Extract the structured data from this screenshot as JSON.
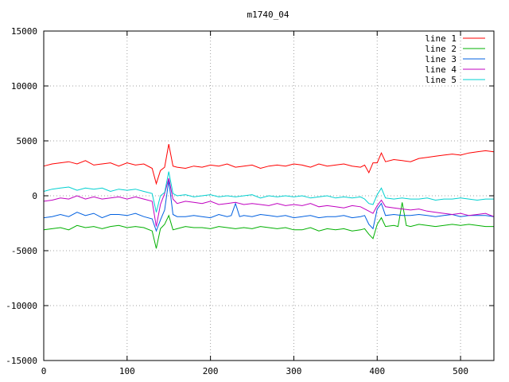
{
  "chart_data": {
    "type": "line",
    "title": "m1740_04",
    "xlabel": "",
    "ylabel": "",
    "xlim": [
      0,
      540
    ],
    "ylim": [
      -15000,
      15000
    ],
    "x_ticks": [
      0,
      100,
      200,
      300,
      400,
      500
    ],
    "y_ticks": [
      -15000,
      -10000,
      -5000,
      0,
      5000,
      10000,
      15000
    ],
    "grid": true,
    "legend_position": "top-right",
    "series": [
      {
        "name": "line 1",
        "color": "#ff0000",
        "x": [
          0,
          10,
          20,
          30,
          40,
          50,
          60,
          70,
          80,
          90,
          100,
          110,
          120,
          130,
          135,
          140,
          145,
          150,
          155,
          160,
          170,
          180,
          190,
          200,
          210,
          220,
          230,
          240,
          250,
          260,
          270,
          280,
          290,
          300,
          310,
          320,
          330,
          340,
          350,
          360,
          370,
          380,
          385,
          390,
          395,
          400,
          405,
          410,
          420,
          430,
          440,
          450,
          460,
          470,
          480,
          490,
          500,
          510,
          520,
          530,
          540
        ],
        "y": [
          2700,
          2900,
          3000,
          3100,
          2900,
          3200,
          2800,
          2900,
          3000,
          2700,
          3000,
          2800,
          2900,
          2500,
          1100,
          2300,
          2600,
          4700,
          2700,
          2600,
          2500,
          2700,
          2600,
          2800,
          2700,
          2900,
          2600,
          2700,
          2800,
          2500,
          2700,
          2800,
          2700,
          2900,
          2800,
          2600,
          2900,
          2700,
          2800,
          2900,
          2700,
          2600,
          2800,
          2100,
          3000,
          3000,
          3900,
          3100,
          3300,
          3200,
          3100,
          3400,
          3500,
          3600,
          3700,
          3800,
          3700,
          3900,
          4000,
          4100,
          4000
        ]
      },
      {
        "name": "line 2",
        "color": "#00b000",
        "x": [
          0,
          10,
          20,
          30,
          40,
          50,
          60,
          70,
          80,
          90,
          100,
          110,
          120,
          130,
          135,
          140,
          145,
          150,
          155,
          160,
          170,
          180,
          190,
          200,
          210,
          220,
          230,
          240,
          250,
          260,
          270,
          280,
          290,
          300,
          310,
          320,
          330,
          340,
          350,
          360,
          370,
          380,
          385,
          390,
          395,
          400,
          405,
          410,
          420,
          425,
          430,
          435,
          440,
          450,
          460,
          470,
          480,
          490,
          500,
          510,
          520,
          530,
          540
        ],
        "y": [
          -3100,
          -3000,
          -2900,
          -3100,
          -2700,
          -2900,
          -2800,
          -3000,
          -2800,
          -2700,
          -2900,
          -2800,
          -2900,
          -3200,
          -4800,
          -3000,
          -2600,
          -1800,
          -3100,
          -3000,
          -2800,
          -2900,
          -2900,
          -3000,
          -2800,
          -2900,
          -3000,
          -2900,
          -3000,
          -2800,
          -2900,
          -3000,
          -2900,
          -3100,
          -3100,
          -2900,
          -3200,
          -3000,
          -3100,
          -3000,
          -3200,
          -3100,
          -3000,
          -3500,
          -3900,
          -2600,
          -2000,
          -2800,
          -2700,
          -2800,
          -600,
          -2700,
          -2800,
          -2600,
          -2700,
          -2800,
          -2700,
          -2600,
          -2700,
          -2600,
          -2700,
          -2800,
          -2800
        ]
      },
      {
        "name": "line 3",
        "color": "#0060e0",
        "x": [
          0,
          10,
          20,
          30,
          40,
          50,
          60,
          70,
          80,
          90,
          100,
          110,
          120,
          130,
          135,
          140,
          145,
          150,
          155,
          160,
          170,
          180,
          190,
          200,
          210,
          220,
          225,
          230,
          235,
          240,
          250,
          260,
          270,
          280,
          290,
          300,
          310,
          320,
          330,
          340,
          350,
          360,
          370,
          380,
          385,
          390,
          395,
          400,
          405,
          410,
          420,
          430,
          440,
          450,
          460,
          470,
          480,
          490,
          500,
          510,
          520,
          530,
          540
        ],
        "y": [
          -2000,
          -1900,
          -1700,
          -1900,
          -1500,
          -1800,
          -1600,
          -2000,
          -1700,
          -1700,
          -1800,
          -1600,
          -1900,
          -2100,
          -3200,
          -2200,
          -1300,
          1400,
          -1700,
          -1900,
          -1900,
          -1800,
          -1900,
          -2000,
          -1700,
          -1900,
          -1800,
          -700,
          -1900,
          -1800,
          -1900,
          -1700,
          -1800,
          -1900,
          -1800,
          -2000,
          -1900,
          -1800,
          -2000,
          -1900,
          -1900,
          -1800,
          -2000,
          -1900,
          -1800,
          -2600,
          -3000,
          -1200,
          -700,
          -1800,
          -1700,
          -1800,
          -1800,
          -1700,
          -1800,
          -1900,
          -1800,
          -1700,
          -1900,
          -1800,
          -1800,
          -1800,
          -1900
        ]
      },
      {
        "name": "line 4",
        "color": "#c000c0",
        "x": [
          0,
          10,
          20,
          30,
          40,
          50,
          60,
          70,
          80,
          90,
          100,
          110,
          120,
          130,
          135,
          140,
          145,
          150,
          155,
          160,
          170,
          180,
          190,
          200,
          210,
          220,
          230,
          240,
          250,
          260,
          270,
          280,
          290,
          300,
          310,
          320,
          330,
          340,
          350,
          360,
          370,
          380,
          385,
          390,
          395,
          400,
          405,
          410,
          420,
          430,
          440,
          450,
          460,
          470,
          480,
          490,
          500,
          510,
          520,
          530,
          540
        ],
        "y": [
          -500,
          -400,
          -200,
          -300,
          0,
          -300,
          -100,
          -300,
          -200,
          -100,
          -300,
          -100,
          -300,
          -500,
          -2800,
          -800,
          200,
          1600,
          -300,
          -700,
          -500,
          -600,
          -700,
          -500,
          -800,
          -700,
          -600,
          -800,
          -700,
          -800,
          -900,
          -700,
          -900,
          -800,
          -900,
          -700,
          -1000,
          -900,
          -1000,
          -1100,
          -900,
          -1000,
          -1200,
          -1400,
          -1600,
          -900,
          -400,
          -1000,
          -1100,
          -1200,
          -1300,
          -1200,
          -1400,
          -1500,
          -1600,
          -1700,
          -1600,
          -1800,
          -1700,
          -1600,
          -1900
        ]
      },
      {
        "name": "line 5",
        "color": "#00d0d0",
        "x": [
          0,
          10,
          20,
          30,
          40,
          50,
          60,
          70,
          80,
          90,
          100,
          110,
          120,
          130,
          135,
          140,
          145,
          150,
          155,
          160,
          170,
          180,
          190,
          200,
          210,
          220,
          230,
          240,
          250,
          260,
          270,
          280,
          290,
          300,
          310,
          320,
          330,
          340,
          350,
          360,
          370,
          380,
          385,
          390,
          395,
          400,
          405,
          410,
          420,
          430,
          440,
          450,
          460,
          470,
          480,
          490,
          500,
          510,
          520,
          530,
          540
        ],
        "y": [
          400,
          600,
          700,
          800,
          500,
          700,
          600,
          700,
          400,
          600,
          500,
          600,
          400,
          200,
          -1500,
          0,
          300,
          2200,
          200,
          0,
          100,
          -100,
          0,
          100,
          -100,
          0,
          -100,
          0,
          100,
          -200,
          0,
          -100,
          0,
          -100,
          0,
          -200,
          -100,
          0,
          -200,
          -100,
          -200,
          -100,
          -300,
          -700,
          -800,
          100,
          700,
          -200,
          -300,
          -200,
          -300,
          -300,
          -200,
          -400,
          -300,
          -300,
          -200,
          -300,
          -400,
          -300,
          -300
        ]
      }
    ]
  }
}
